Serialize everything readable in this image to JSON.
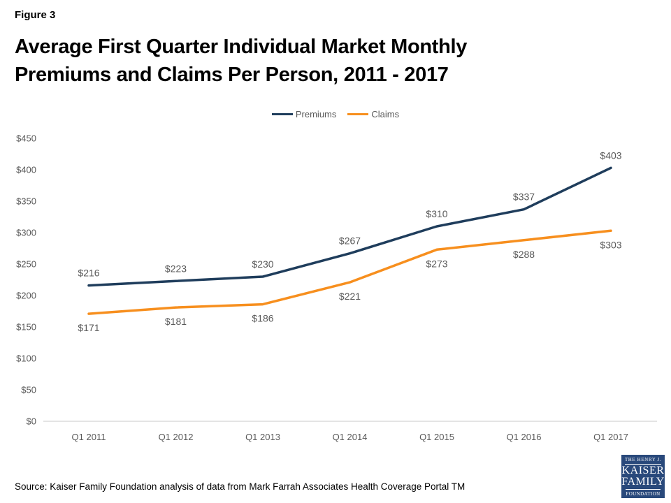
{
  "header": {
    "figure_label": "Figure 3",
    "title_line1": "Average First Quarter Individual Market Monthly",
    "title_line2": "Premiums and Claims Per Person, 2011 - 2017"
  },
  "chart_data": {
    "type": "line",
    "title": "Average First Quarter Individual Market Monthly Premiums and Claims Per Person, 2011 - 2017",
    "categories": [
      "Q1 2011",
      "Q1 2012",
      "Q1 2013",
      "Q1 2014",
      "Q1 2015",
      "Q1 2016",
      "Q1 2017"
    ],
    "series": [
      {
        "name": "Premiums",
        "color": "#1F3D5C",
        "values": [
          216,
          223,
          230,
          267,
          310,
          337,
          403
        ]
      },
      {
        "name": "Claims",
        "color": "#F78F1E",
        "values": [
          171,
          181,
          186,
          221,
          273,
          288,
          303
        ]
      }
    ],
    "y_ticks": [
      0,
      50,
      100,
      150,
      200,
      250,
      300,
      350,
      400,
      450
    ],
    "y_tick_prefix": "$",
    "data_label_prefix": "$",
    "ylim": [
      0,
      450
    ],
    "grid": false,
    "legend_position": "top-center",
    "data_labels": true,
    "axis_line_color": "#C9C9C9",
    "tick_text_color": "#595959",
    "data_label_color": "#595959"
  },
  "footer": {
    "source": "Source: Kaiser Family Foundation analysis of data from Mark Farrah Associates Health Coverage Portal TM",
    "logo": {
      "line1": "THE HENRY J.",
      "line2": "KAISER",
      "line3": "FAMILY",
      "line4": "FOUNDATION",
      "bg_color": "#29497B"
    }
  }
}
